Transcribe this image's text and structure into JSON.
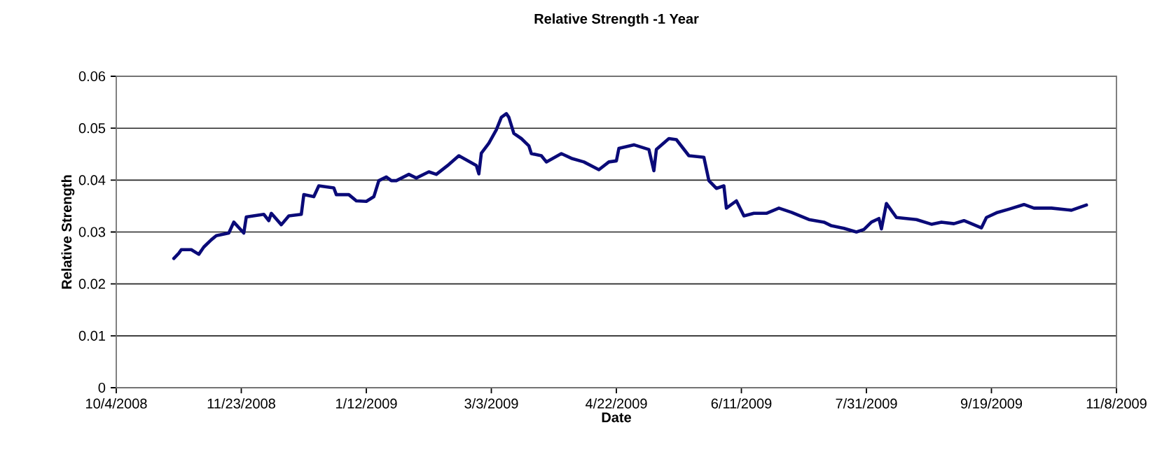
{
  "chart_data": {
    "type": "line",
    "title": "Relative Strength -1 Year",
    "xlabel": "Date",
    "ylabel": "Relative Strength",
    "x": [
      "2008-10-27",
      "2008-10-29",
      "2008-10-30",
      "2008-11-03",
      "2008-11-06",
      "2008-11-08",
      "2008-11-11",
      "2008-11-13",
      "2008-11-18",
      "2008-11-20",
      "2008-11-24",
      "2008-11-25",
      "2008-12-02",
      "2008-12-04",
      "2008-12-05",
      "2008-12-09",
      "2008-12-12",
      "2008-12-17",
      "2008-12-18",
      "2008-12-22",
      "2008-12-24",
      "2008-12-30",
      "2008-12-31",
      "2009-01-05",
      "2009-01-08",
      "2009-01-12",
      "2009-01-15",
      "2009-01-17",
      "2009-01-20",
      "2009-01-22",
      "2009-01-24",
      "2009-01-29",
      "2009-02-01",
      "2009-02-06",
      "2009-02-09",
      "2009-02-14",
      "2009-02-18",
      "2009-02-25",
      "2009-02-26",
      "2009-02-27",
      "2009-03-02",
      "2009-03-05",
      "2009-03-07",
      "2009-03-09",
      "2009-03-10",
      "2009-03-12",
      "2009-03-15",
      "2009-03-18",
      "2009-03-19",
      "2009-03-23",
      "2009-03-25",
      "2009-03-31",
      "2009-04-04",
      "2009-04-09",
      "2009-04-15",
      "2009-04-19",
      "2009-04-22",
      "2009-04-23",
      "2009-04-29",
      "2009-05-05",
      "2009-05-07",
      "2009-05-08",
      "2009-05-13",
      "2009-05-16",
      "2009-05-21",
      "2009-05-27",
      "2009-05-29",
      "2009-06-01",
      "2009-06-04",
      "2009-06-05",
      "2009-06-09",
      "2009-06-12",
      "2009-06-16",
      "2009-06-21",
      "2009-06-26",
      "2009-07-01",
      "2009-07-08",
      "2009-07-14",
      "2009-07-17",
      "2009-07-22",
      "2009-07-27",
      "2009-07-30",
      "2009-08-02",
      "2009-08-05",
      "2009-08-06",
      "2009-08-08",
      "2009-08-12",
      "2009-08-20",
      "2009-08-26",
      "2009-08-30",
      "2009-09-04",
      "2009-09-08",
      "2009-09-15",
      "2009-09-17",
      "2009-09-21",
      "2009-09-26",
      "2009-10-02",
      "2009-10-06",
      "2009-10-13",
      "2009-10-21",
      "2009-10-27"
    ],
    "series": [
      {
        "color": "#0a0a78",
        "values": [
          0.0249,
          0.0259,
          0.0266,
          0.0266,
          0.0257,
          0.0271,
          0.0285,
          0.0293,
          0.0298,
          0.0319,
          0.0298,
          0.0329,
          0.0334,
          0.0322,
          0.0336,
          0.0314,
          0.0331,
          0.0334,
          0.0372,
          0.0368,
          0.0389,
          0.0385,
          0.0372,
          0.0372,
          0.036,
          0.0359,
          0.0368,
          0.0399,
          0.0406,
          0.0399,
          0.0399,
          0.0411,
          0.0404,
          0.0416,
          0.0411,
          0.043,
          0.0447,
          0.0428,
          0.0412,
          0.0452,
          0.0471,
          0.0497,
          0.0521,
          0.0528,
          0.0521,
          0.049,
          0.048,
          0.0466,
          0.0451,
          0.0447,
          0.0435,
          0.0451,
          0.0442,
          0.0435,
          0.042,
          0.0435,
          0.0437,
          0.0461,
          0.0468,
          0.0459,
          0.0418,
          0.0459,
          0.048,
          0.0478,
          0.0447,
          0.0444,
          0.0399,
          0.0384,
          0.0389,
          0.0346,
          0.036,
          0.0331,
          0.0336,
          0.0336,
          0.0346,
          0.0338,
          0.0324,
          0.0319,
          0.0312,
          0.0307,
          0.03,
          0.0305,
          0.0319,
          0.0326,
          0.0306,
          0.0355,
          0.0328,
          0.0324,
          0.0315,
          0.0319,
          0.0316,
          0.0322,
          0.0308,
          0.0328,
          0.0337,
          0.0344,
          0.0353,
          0.0346,
          0.0346,
          0.0342,
          0.0352
        ]
      }
    ],
    "xlim": [
      "2008-10-04",
      "2009-11-08"
    ],
    "xticks": [
      {
        "value": "2008-10-04",
        "label": "10/4/2008"
      },
      {
        "value": "2008-11-23",
        "label": "11/23/2008"
      },
      {
        "value": "2009-01-12",
        "label": "1/12/2009"
      },
      {
        "value": "2009-03-03",
        "label": "3/3/2009"
      },
      {
        "value": "2009-04-22",
        "label": "4/22/2009"
      },
      {
        "value": "2009-06-11",
        "label": "6/11/2009"
      },
      {
        "value": "2009-07-31",
        "label": "7/31/2009"
      },
      {
        "value": "2009-09-19",
        "label": "9/19/2009"
      },
      {
        "value": "2009-11-08",
        "label": "11/8/2009"
      }
    ],
    "ylim": [
      0,
      0.06
    ],
    "yticks": [
      0,
      0.01,
      0.02,
      0.03,
      0.04,
      0.05,
      0.06
    ],
    "grid": "y",
    "line_style": "solid"
  }
}
